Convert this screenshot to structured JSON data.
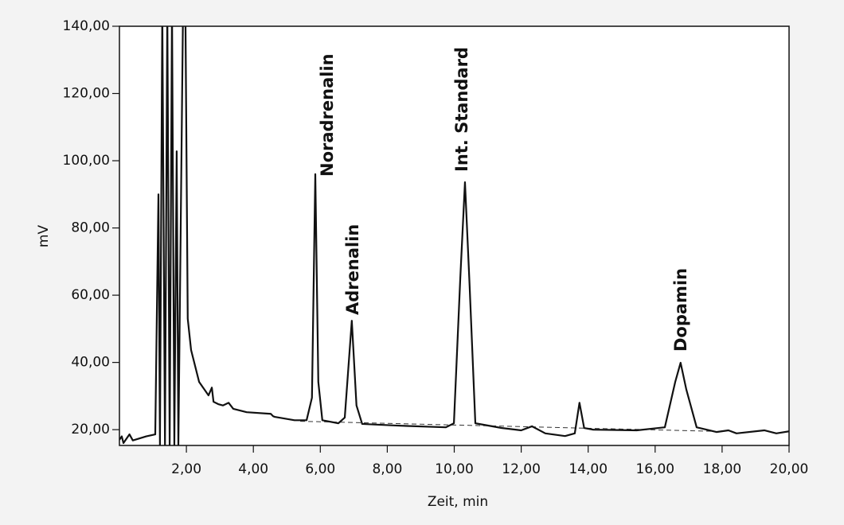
{
  "chart_data": {
    "type": "line",
    "xlabel": "Zeit, min",
    "ylabel": "mV",
    "xlim": [
      0,
      20
    ],
    "ylim": [
      15.3,
      140
    ],
    "xticks": [
      {
        "value": 2,
        "label": "2,00"
      },
      {
        "value": 4,
        "label": "4,00"
      },
      {
        "value": 6,
        "label": "6,00"
      },
      {
        "value": 8,
        "label": "8,00"
      },
      {
        "value": 10,
        "label": "10,00"
      },
      {
        "value": 12,
        "label": "12,00"
      },
      {
        "value": 14,
        "label": "14,00"
      },
      {
        "value": 16,
        "label": "16,00"
      },
      {
        "value": 18,
        "label": "18,00"
      },
      {
        "value": 20,
        "label": "20,00"
      }
    ],
    "yticks": [
      {
        "value": 20,
        "label": "20,00"
      },
      {
        "value": 40,
        "label": "40,00"
      },
      {
        "value": 60,
        "label": "60,00"
      },
      {
        "value": 80,
        "label": "80,00"
      },
      {
        "value": 100,
        "label": "100,00"
      },
      {
        "value": 120,
        "label": "120,00"
      },
      {
        "value": 140,
        "label": "140,00"
      }
    ],
    "annotations": [
      "Noradrenalin",
      "Adrenalin",
      "Int. Standard",
      "Dopamin"
    ],
    "x": [
      0,
      0.07,
      0.12,
      0.3,
      0.4,
      0.8,
      1.07,
      1.165,
      1.21,
      1.28,
      1.36,
      1.43,
      1.5,
      1.57,
      1.64,
      1.71,
      1.76,
      1.9,
      1.97,
      2.04,
      2.14,
      2.38,
      2.66,
      2.76,
      2.81,
      2.95,
      3.09,
      3.26,
      3.4,
      3.8,
      4.52,
      4.59,
      4.64,
      5.23,
      5.59,
      5.75,
      5.85,
      5.94,
      6.06,
      6.54,
      6.73,
      6.94,
      7.08,
      7.25,
      8.32,
      9.75,
      9.99,
      10.18,
      10.32,
      10.46,
      10.63,
      11.41,
      12.0,
      12.32,
      12.72,
      13.31,
      13.6,
      13.74,
      13.88,
      14.15,
      15.45,
      16.29,
      16.6,
      16.76,
      16.93,
      17.24,
      17.83,
      18.19,
      18.43,
      19.26,
      19.62,
      20.0
    ],
    "series": [
      {
        "color": "#111111",
        "values": [
          17,
          18,
          16,
          18.6,
          16.8,
          18,
          18.6,
          90,
          15.3,
          145,
          15.3,
          145,
          15.3,
          145,
          15.3,
          102.8,
          15.3,
          145,
          145,
          53,
          43.7,
          34.2,
          30.2,
          32.5,
          28.3,
          27.6,
          27.2,
          28,
          26.2,
          25.2,
          24.7,
          24,
          23.8,
          22.8,
          22.8,
          29.5,
          96,
          34.2,
          22.8,
          21.9,
          23.6,
          52.4,
          27.2,
          21.7,
          21.2,
          20.7,
          21.9,
          65,
          93.6,
          62.6,
          21.9,
          20.5,
          19.8,
          21,
          18.9,
          18.1,
          18.9,
          28,
          20.5,
          20,
          19.8,
          20.7,
          34.2,
          39.9,
          32,
          20.7,
          19.3,
          19.8,
          18.9,
          19.8,
          18.9,
          19.5
        ]
      }
    ],
    "baseline": {
      "x": [
        5.4,
        17.8
      ],
      "values": [
        22.5,
        19.5
      ],
      "color": "#333333",
      "dashed": true
    }
  }
}
